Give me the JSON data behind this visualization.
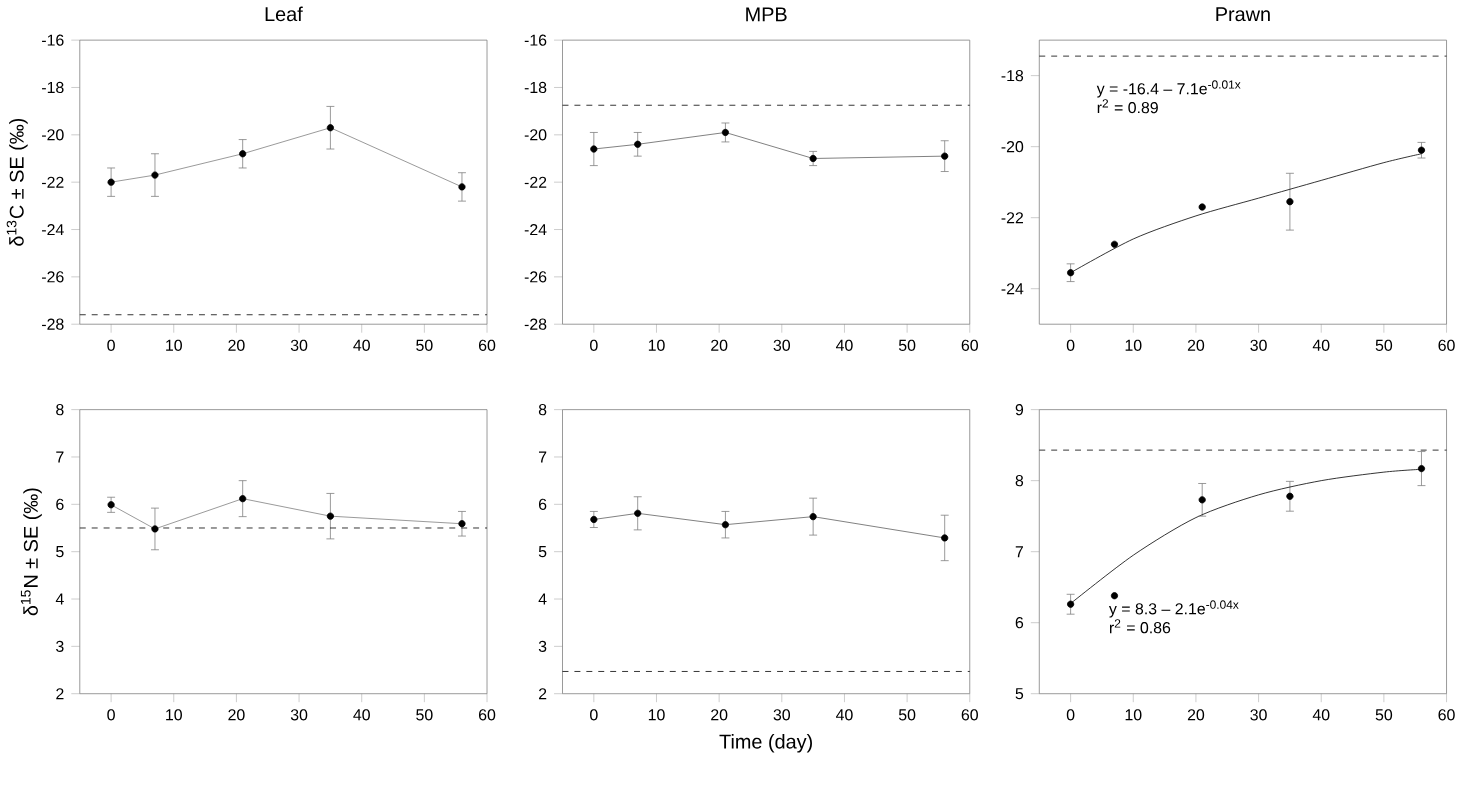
{
  "chart_data": [
    {
      "type": "line",
      "title": "Leaf",
      "ylabel": "δ$^{13}$C ± SE (‰)",
      "x": [
        0,
        7,
        21,
        35,
        56
      ],
      "xlim": [
        -5,
        60
      ],
      "xticks": [
        0,
        10,
        20,
        30,
        40,
        50,
        60
      ],
      "ylim": [
        -28,
        -16
      ],
      "yticks": [
        -28,
        -26,
        -24,
        -22,
        -20,
        -18,
        -16
      ],
      "marker": "circle",
      "series": [
        {
          "color": "#808080",
          "values": [
            -22.0,
            -21.7,
            -20.8,
            -19.7,
            -22.2
          ],
          "errors": [
            0.6,
            0.9,
            0.6,
            0.9,
            0.6
          ]
        }
      ],
      "ref_lines": [
        {
          "axis": "y",
          "value": -27.6,
          "line_style": "dashed",
          "color": "#000000"
        }
      ]
    },
    {
      "type": "line",
      "title": "MPB",
      "x": [
        0,
        7,
        21,
        35,
        56
      ],
      "xlim": [
        -5,
        60
      ],
      "xticks": [
        0,
        10,
        20,
        30,
        40,
        50,
        60
      ],
      "ylim": [
        -28,
        -16
      ],
      "yticks": [
        -28,
        -26,
        -24,
        -22,
        -20,
        -18,
        -16
      ],
      "marker": "circle",
      "series": [
        {
          "color": "#606060",
          "values": [
            -20.6,
            -20.4,
            -19.9,
            -21.0,
            -20.9
          ],
          "errors": [
            0.7,
            0.5,
            0.4,
            0.3,
            0.65
          ]
        }
      ],
      "ref_lines": [
        {
          "axis": "y",
          "value": -18.75,
          "line_style": "dashed",
          "color": "#000000"
        }
      ]
    },
    {
      "type": "scatter",
      "title": "Prawn",
      "x": [
        0,
        7,
        21,
        35,
        56
      ],
      "xlim": [
        -5,
        60
      ],
      "xticks": [
        0,
        10,
        20,
        30,
        40,
        50,
        60
      ],
      "ylim": [
        -25,
        -17
      ],
      "yticks": [
        -24,
        -22,
        -20,
        -18
      ],
      "marker": "circle",
      "series": [
        {
          "color": "#000000",
          "values": [
            -23.55,
            -22.75,
            -21.7,
            -21.55,
            -20.1
          ],
          "errors": [
            0.25,
            null,
            null,
            0.8,
            0.22
          ]
        },
        {
          "type": "line",
          "marker": "none",
          "color": "#000000",
          "x": [
            0,
            10,
            20,
            30,
            40,
            50,
            56
          ],
          "values": [
            -23.55,
            -22.6,
            -21.95,
            -21.45,
            -20.95,
            -20.45,
            -20.2
          ]
        }
      ],
      "ref_lines": [
        {
          "axis": "y",
          "value": -17.45,
          "line_style": "dashed",
          "color": "#000000"
        }
      ],
      "annotations": [
        "y = -16.4 – 7.1e$^{-0.01x}$",
        "r$^{2}$ = 0.89"
      ]
    },
    {
      "type": "line",
      "ylabel": "δ$^{15}$N ± SE (‰)",
      "x": [
        0,
        7,
        21,
        35,
        56
      ],
      "xlim": [
        -5,
        60
      ],
      "xticks": [
        0,
        10,
        20,
        30,
        40,
        50,
        60
      ],
      "ylim": [
        2,
        8
      ],
      "yticks": [
        2,
        3,
        4,
        5,
        6,
        7,
        8
      ],
      "marker": "circle",
      "series": [
        {
          "color": "#808080",
          "values": [
            5.99,
            5.48,
            6.12,
            5.75,
            5.59
          ],
          "errors": [
            0.16,
            0.44,
            0.38,
            0.48,
            0.26
          ]
        }
      ],
      "ref_lines": [
        {
          "axis": "y",
          "value": 5.5,
          "line_style": "dashed",
          "color": "#000000"
        }
      ]
    },
    {
      "type": "line",
      "xlabel": "Time (day)",
      "x": [
        0,
        7,
        21,
        35,
        56
      ],
      "xlim": [
        -5,
        60
      ],
      "xticks": [
        0,
        10,
        20,
        30,
        40,
        50,
        60
      ],
      "ylim": [
        2,
        8
      ],
      "yticks": [
        2,
        3,
        4,
        5,
        6,
        7,
        8
      ],
      "marker": "circle",
      "series": [
        {
          "color": "#606060",
          "values": [
            5.68,
            5.81,
            5.57,
            5.74,
            5.29
          ],
          "errors": [
            0.17,
            0.35,
            0.28,
            0.39,
            0.48
          ]
        }
      ],
      "ref_lines": [
        {
          "axis": "y",
          "value": 2.47,
          "line_style": "dashed",
          "color": "#000000"
        }
      ]
    },
    {
      "type": "scatter",
      "x": [
        0,
        7,
        21,
        35,
        56
      ],
      "xlim": [
        -5,
        60
      ],
      "xticks": [
        0,
        10,
        20,
        30,
        40,
        50,
        60
      ],
      "ylim": [
        5,
        9
      ],
      "yticks": [
        5,
        6,
        7,
        8,
        9
      ],
      "marker": "circle",
      "series": [
        {
          "color": "#000000",
          "values": [
            6.26,
            6.38,
            7.73,
            7.78,
            8.17
          ],
          "errors": [
            0.14,
            null,
            0.23,
            0.21,
            0.24
          ]
        },
        {
          "type": "line",
          "marker": "none",
          "color": "#000000",
          "x": [
            0,
            10,
            20,
            30,
            40,
            50,
            56
          ],
          "values": [
            6.27,
            6.95,
            7.48,
            7.8,
            8.0,
            8.12,
            8.16
          ]
        }
      ],
      "ref_lines": [
        {
          "axis": "y",
          "value": 8.43,
          "line_style": "dashed",
          "color": "#000000"
        }
      ],
      "annotations": [
        "y = 8.3 – 2.1e$^{-0.04x}$",
        "r$^{2}$ = 0.86"
      ]
    }
  ]
}
